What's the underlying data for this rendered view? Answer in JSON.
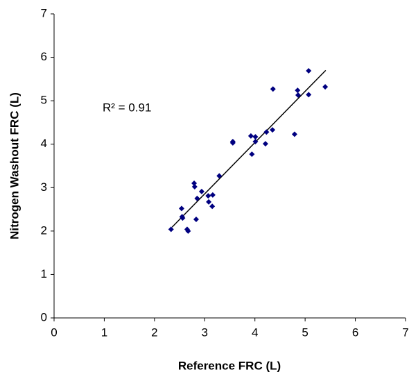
{
  "chart_data": {
    "type": "scatter",
    "x_label": "Reference FRC (L)",
    "y_label": "Nitrogen Washout FRC (L)",
    "annotation": "R² = 0.91",
    "color": "#000080",
    "xlim": [
      0,
      7
    ],
    "xticks": [
      0,
      1,
      2,
      3,
      4,
      5,
      6,
      7
    ],
    "ylim": [
      0,
      7
    ],
    "yticks": [
      0,
      1,
      2,
      3,
      4,
      5,
      6,
      7
    ],
    "x": [
      2.33,
      2.54,
      2.55,
      2.56,
      2.65,
      2.67,
      2.79,
      2.8,
      2.85,
      2.83,
      2.94,
      3.07,
      3.08,
      3.16,
      3.15,
      3.29,
      3.56,
      3.56,
      3.92,
      3.94,
      4.01,
      4.01,
      4.21,
      4.23,
      4.35,
      4.36,
      4.79,
      4.85,
      4.86,
      5.07,
      5.07,
      5.4
    ],
    "y": [
      2.04,
      2.52,
      2.33,
      2.3,
      2.04,
      2.0,
      3.1,
      3.02,
      2.75,
      2.27,
      2.91,
      2.81,
      2.67,
      2.83,
      2.57,
      3.27,
      4.06,
      4.03,
      4.19,
      3.77,
      4.17,
      4.06,
      4.01,
      4.28,
      4.33,
      5.27,
      4.23,
      5.24,
      5.13,
      5.69,
      5.14,
      5.32
    ],
    "trendline": {
      "x": [
        2.35,
        5.41
      ],
      "y": [
        2.09,
        5.7
      ],
      "color": "#000000"
    }
  }
}
